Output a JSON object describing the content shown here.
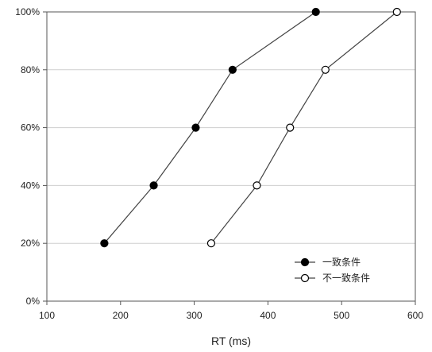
{
  "chart_data": {
    "type": "line",
    "title": "",
    "xlabel": "RT (ms)",
    "ylabel": "",
    "xlim": [
      100,
      600
    ],
    "ylim": [
      0,
      100
    ],
    "x_ticks": [
      100,
      200,
      300,
      400,
      500,
      600
    ],
    "y_ticks": [
      0,
      20,
      40,
      60,
      80,
      100
    ],
    "y_tick_labels": [
      "0%",
      "20%",
      "40%",
      "60%",
      "80%",
      "100%"
    ],
    "grid": "horizontal",
    "legend_position": "bottom-right",
    "series": [
      {
        "name": "一致条件",
        "marker": "filled-circle",
        "color": "#000000",
        "points": [
          {
            "x": 178,
            "y": 20
          },
          {
            "x": 245,
            "y": 40
          },
          {
            "x": 302,
            "y": 60
          },
          {
            "x": 352,
            "y": 80
          },
          {
            "x": 465,
            "y": 100
          }
        ]
      },
      {
        "name": "不一致条件",
        "marker": "open-circle",
        "color": "#000000",
        "points": [
          {
            "x": 323,
            "y": 20
          },
          {
            "x": 385,
            "y": 40
          },
          {
            "x": 430,
            "y": 60
          },
          {
            "x": 478,
            "y": 80
          },
          {
            "x": 575,
            "y": 100
          }
        ]
      }
    ]
  }
}
